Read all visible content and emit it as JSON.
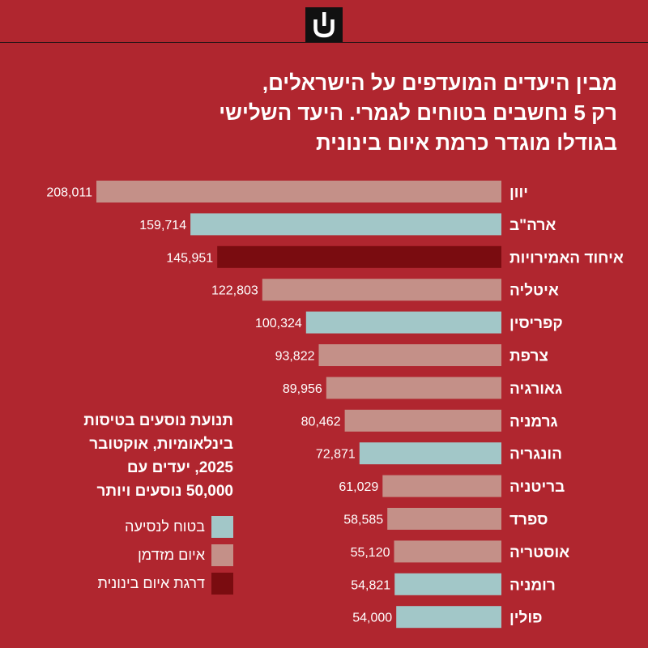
{
  "title_lines": [
    "מבין היעדים המועדפים על הישראלים,",
    "רק 5 נחשבים בטוחים לגמרי. היעד השלישי",
    "בגודלו מוגדר כרמת איום בינונית"
  ],
  "subtitle_lines": [
    "תנועת נוסעים בטיסות",
    "בינלאומיות, אוקטובר",
    "2025, יעדים עם",
    "50,000 נוסעים ויותר"
  ],
  "legend": [
    {
      "label": "בטוח לנסיעה",
      "color": "#a2c7c8"
    },
    {
      "label": "איום מזדמן",
      "color": "#c49088"
    },
    {
      "label": "דרגת איום בינונית",
      "color": "#7a0c10"
    }
  ],
  "colors": {
    "background": "#b0262f",
    "safe": "#a2c7c8",
    "occasional": "#c49088",
    "medium": "#7a0c10"
  },
  "logo": {
    "icon": "ynet-logo-icon"
  },
  "chart_data": {
    "type": "bar",
    "orientation": "horizontal",
    "title": "מבין היעדים המועדפים על הישראלים, רק 5 נחשבים בטוחים לגמרי. היעד השלישי בגודלו מוגדר כרמת איום בינונית",
    "categories": [
      "יוון",
      "ארה\"ב",
      "איחוד האמירויות",
      "איטליה",
      "קפריסין",
      "צרפת",
      "גאורגיה",
      "גרמניה",
      "הונגריה",
      "בריטניה",
      "ספרד",
      "אוסטריה",
      "רומניה",
      "פולין"
    ],
    "values": [
      208011,
      159714,
      145951,
      122803,
      100324,
      93822,
      89956,
      80462,
      72871,
      61029,
      58585,
      55120,
      54821,
      54000
    ],
    "value_labels": [
      "208,011",
      "159,714",
      "145,951",
      "122,803",
      "100,324",
      "93,822",
      "89,956",
      "80,462",
      "72,871",
      "61,029",
      "58,585",
      "55,120",
      "54,821",
      "54,000"
    ],
    "threat_levels": [
      "occasional",
      "safe",
      "medium",
      "occasional",
      "safe",
      "occasional",
      "occasional",
      "occasional",
      "safe",
      "occasional",
      "occasional",
      "occasional",
      "safe",
      "safe"
    ],
    "xlim": [
      0,
      208011
    ],
    "xlabel": "",
    "ylabel": ""
  }
}
